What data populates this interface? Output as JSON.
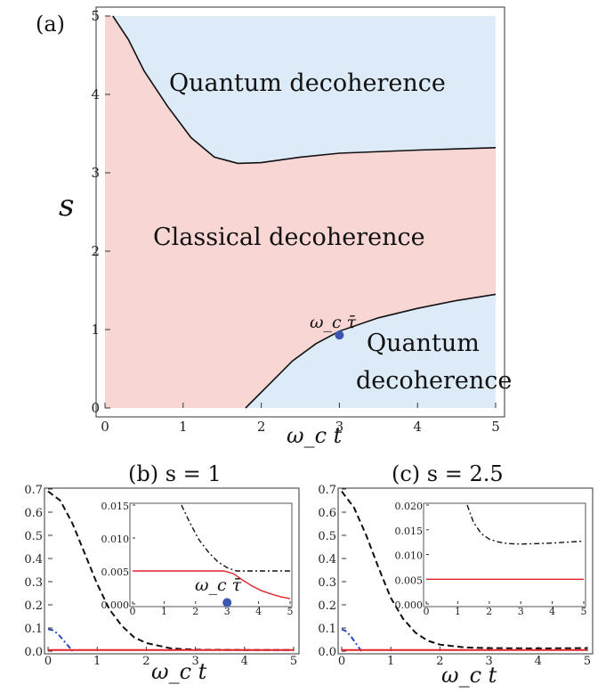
{
  "chart_data": [
    {
      "panel": "(a)",
      "type": "area",
      "xlabel": "ω_c t",
      "ylabel": "s",
      "xlim": [
        0,
        5
      ],
      "ylim": [
        0,
        5
      ],
      "x_ticks": [
        "0",
        "1",
        "2",
        "3",
        "4",
        "5"
      ],
      "y_ticks": [
        "0",
        "1",
        "2",
        "3",
        "4",
        "5"
      ],
      "regions": [
        {
          "label": "Quantum decoherence",
          "color": "#dcebf7"
        },
        {
          "label": "Classical decoherence",
          "color": "#f8d6d4"
        },
        {
          "label": "Quantum\ndecoherence",
          "color": "#dcebf7"
        }
      ],
      "upper_boundary": [
        [
          0.1,
          5.0
        ],
        [
          0.3,
          4.7
        ],
        [
          0.5,
          4.3
        ],
        [
          0.8,
          3.85
        ],
        [
          1.1,
          3.45
        ],
        [
          1.4,
          3.2
        ],
        [
          1.7,
          3.12
        ],
        [
          2.0,
          3.13
        ],
        [
          2.5,
          3.2
        ],
        [
          3.0,
          3.25
        ],
        [
          4.0,
          3.29
        ],
        [
          5.0,
          3.32
        ]
      ],
      "lower_boundary": [
        [
          1.8,
          0.0
        ],
        [
          2.1,
          0.3
        ],
        [
          2.4,
          0.6
        ],
        [
          2.7,
          0.82
        ],
        [
          3.0,
          0.98
        ],
        [
          3.5,
          1.15
        ],
        [
          4.0,
          1.27
        ],
        [
          4.5,
          1.37
        ],
        [
          5.0,
          1.45
        ]
      ],
      "marker": {
        "x": 3.0,
        "y": 0.93,
        "label": "ω_c τ̄",
        "color": "#3a56b0"
      }
    },
    {
      "panel": "(b) s = 1",
      "type": "line",
      "xlabel": "ω_c t",
      "xlim": [
        0,
        5
      ],
      "ylim": [
        0,
        0.7
      ],
      "x_ticks": [
        "0",
        "1",
        "2",
        "3",
        "4",
        "5"
      ],
      "y_ticks": [
        "0.0",
        "0.1",
        "0.2",
        "0.3",
        "0.4",
        "0.5",
        "0.6",
        "0.7"
      ],
      "series": [
        {
          "style": "dashed",
          "color": "#111111",
          "x": [
            0,
            0.25,
            0.5,
            0.75,
            1.0,
            1.25,
            1.5,
            1.75,
            2.0,
            2.5,
            3.0,
            4.0,
            5.0
          ],
          "y": [
            0.69,
            0.65,
            0.55,
            0.42,
            0.29,
            0.18,
            0.11,
            0.06,
            0.035,
            0.012,
            0.006,
            0.005,
            0.005
          ]
        },
        {
          "style": "dash-dot",
          "color": "#2a49b8",
          "x": [
            0,
            0.1,
            0.2,
            0.3,
            0.4,
            0.5
          ],
          "y": [
            0.095,
            0.09,
            0.075,
            0.05,
            0.025,
            0.0
          ]
        },
        {
          "style": "solid",
          "color": "#e0262b",
          "x": [
            0,
            5
          ],
          "y": [
            0.005,
            0.005
          ]
        }
      ],
      "inset": {
        "xlim": [
          0,
          5
        ],
        "ylim": [
          0,
          0.015
        ],
        "x_ticks": [
          "0",
          "1",
          "2",
          "3",
          "4",
          "5"
        ],
        "y_ticks": [
          "0.000",
          "0.005",
          "0.010",
          "0.015"
        ],
        "series": [
          {
            "style": "dash-dot",
            "color": "#111111",
            "x": [
              1.55,
              1.8,
              2.1,
              2.4,
              2.7,
              3.0,
              3.3,
              3.6,
              4.0,
              5.0
            ],
            "y": [
              0.015,
              0.0125,
              0.0098,
              0.0079,
              0.0064,
              0.0055,
              0.005,
              0.005,
              0.005,
              0.005
            ]
          },
          {
            "style": "solid",
            "color": "#e0262b",
            "x": [
              0,
              1,
              2,
              2.9,
              3.2,
              3.5,
              3.8,
              4.1,
              4.4,
              4.7,
              5.0
            ],
            "y": [
              0.005,
              0.005,
              0.005,
              0.005,
              0.0046,
              0.0036,
              0.0027,
              0.002,
              0.0015,
              0.0011,
              0.0008
            ]
          }
        ],
        "marker": {
          "x": 3.0,
          "y": 0.0002,
          "label": "ω_c τ̄",
          "color": "#3a56b0"
        }
      }
    },
    {
      "panel": "(c) s = 2.5",
      "type": "line",
      "xlabel": "ω_c t",
      "xlim": [
        0,
        5
      ],
      "ylim": [
        0,
        0.7
      ],
      "x_ticks": [
        "0",
        "1",
        "2",
        "3",
        "4",
        "5"
      ],
      "y_ticks": [
        "0.0",
        "0.1",
        "0.2",
        "0.3",
        "0.4",
        "0.5",
        "0.6",
        "0.7"
      ],
      "series": [
        {
          "style": "dashed",
          "color": "#111111",
          "x": [
            0,
            0.25,
            0.5,
            0.75,
            1.0,
            1.25,
            1.5,
            1.75,
            2.0,
            2.5,
            3.0,
            4.0,
            5.0
          ],
          "y": [
            0.69,
            0.62,
            0.5,
            0.36,
            0.23,
            0.14,
            0.08,
            0.045,
            0.028,
            0.016,
            0.013,
            0.012,
            0.013
          ]
        },
        {
          "style": "dash-dot",
          "color": "#2a49b8",
          "x": [
            0,
            0.1,
            0.2,
            0.3,
            0.4
          ],
          "y": [
            0.095,
            0.085,
            0.06,
            0.03,
            0.0
          ]
        },
        {
          "style": "solid",
          "color": "#e0262b",
          "x": [
            0,
            5
          ],
          "y": [
            0.005,
            0.005
          ]
        }
      ],
      "inset": {
        "xlim": [
          0,
          5
        ],
        "ylim": [
          0,
          0.02
        ],
        "x_ticks": [
          "0",
          "1",
          "2",
          "3",
          "4",
          "5"
        ],
        "y_ticks": [
          "0.000",
          "0.005",
          "0.010",
          "0.015",
          "0.020"
        ],
        "series": [
          {
            "style": "dash-dot",
            "color": "#111111",
            "x": [
              1.3,
              1.5,
              1.75,
              2.0,
              2.3,
              2.6,
              3.0,
              3.5,
              4.0,
              4.5,
              5.0
            ],
            "y": [
              0.02,
              0.0165,
              0.0142,
              0.0131,
              0.0125,
              0.0122,
              0.0121,
              0.0122,
              0.0123,
              0.0125,
              0.0127
            ]
          },
          {
            "style": "solid",
            "color": "#e0262b",
            "x": [
              0,
              5
            ],
            "y": [
              0.005,
              0.005
            ]
          }
        ]
      }
    }
  ]
}
